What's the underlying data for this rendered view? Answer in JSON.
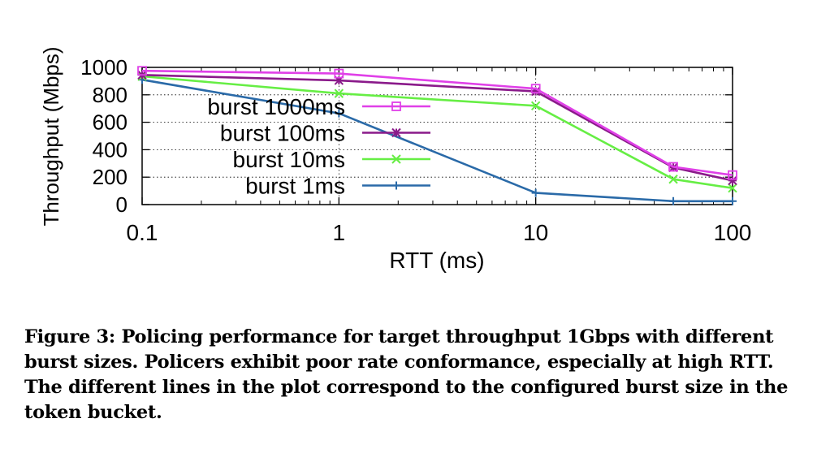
{
  "chart_data": {
    "type": "line",
    "xlabel": "RTT (ms)",
    "ylabel": "Throughput (Mbps)",
    "x_scale": "log",
    "xlim": [
      0.1,
      100
    ],
    "ylim": [
      0,
      1000
    ],
    "x_ticks": [
      0.1,
      1,
      10,
      100
    ],
    "x_tick_labels": [
      "0.1",
      "1",
      "10",
      "100"
    ],
    "y_ticks": [
      0,
      200,
      400,
      600,
      800,
      1000
    ],
    "y_tick_labels": [
      "0",
      "200",
      "400",
      "600",
      "800",
      "1000"
    ],
    "grid": true,
    "legend_position": "center-left",
    "x": [
      0.1,
      1,
      10,
      50,
      100
    ],
    "series": [
      {
        "name": "burst 1000ms",
        "color": "#e040e8",
        "marker": "square",
        "values": [
          975,
          955,
          845,
          275,
          215
        ]
      },
      {
        "name": "burst 100ms",
        "color": "#8a1a8a",
        "marker": "star",
        "values": [
          945,
          905,
          825,
          270,
          175
        ]
      },
      {
        "name": "burst 10ms",
        "color": "#66ee44",
        "marker": "x",
        "values": [
          935,
          810,
          720,
          185,
          120
        ]
      },
      {
        "name": "burst 1ms",
        "color": "#2a6aa8",
        "marker": "plus",
        "values": [
          910,
          665,
          85,
          25,
          25
        ]
      }
    ]
  },
  "caption": {
    "label": "Figure 3:",
    "text": "Policing performance for target throughput 1Gbps with different burst sizes. Policers exhibit poor rate conformance, especially at high RTT. The different lines in the plot correspond to the configured burst size in the token bucket."
  }
}
